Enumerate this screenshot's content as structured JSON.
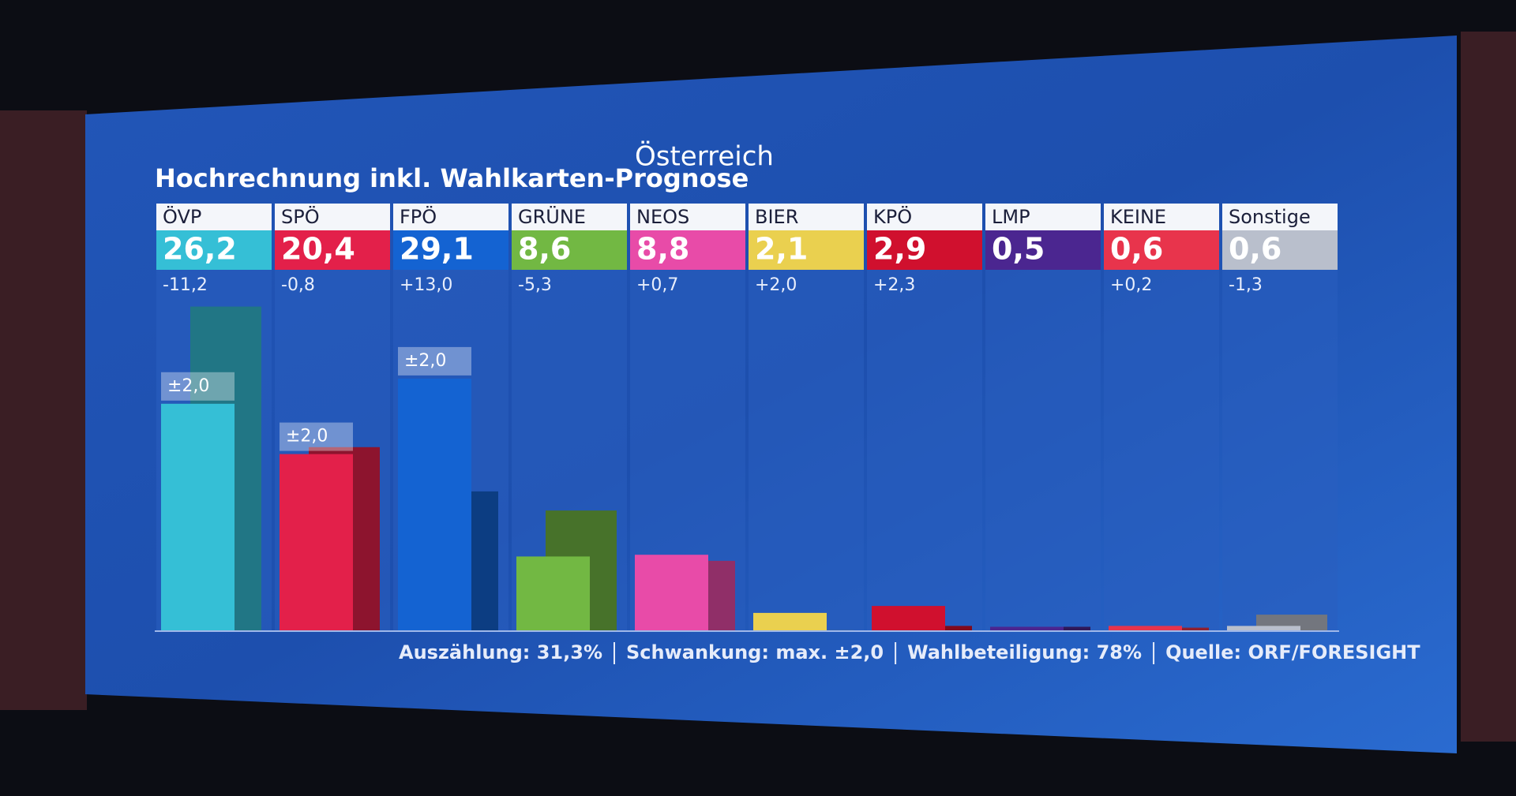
{
  "chart_data": {
    "type": "bar",
    "title": "Hochrechnung inkl. Wahlkarten-Prognose",
    "subtitle": "Österreich",
    "categories": [
      "ÖVP",
      "SPÖ",
      "FPÖ",
      "GRÜNE",
      "NEOS",
      "BIER",
      "KPÖ",
      "LMP",
      "KEINE",
      "Sonstige"
    ],
    "values": [
      26.2,
      20.4,
      29.1,
      8.6,
      8.8,
      2.1,
      2.9,
      0.5,
      0.6,
      0.6
    ],
    "value_labels": [
      "26,2",
      "20,4",
      "29,1",
      "8,6",
      "8,8",
      "2,1",
      "2,9",
      "0,5",
      "0,6",
      "0,6"
    ],
    "changes": [
      -11.2,
      -0.8,
      13.0,
      -5.3,
      0.7,
      2.0,
      2.3,
      null,
      0.2,
      -1.3
    ],
    "change_labels": [
      "-11,2",
      "-0,8",
      "+13,0",
      "-5,3",
      "+0,7",
      "+2,0",
      "+2,3",
      null,
      "+0,2",
      "-1,3"
    ],
    "previous_values": [
      37.4,
      21.2,
      16.1,
      13.9,
      8.1,
      0.1,
      0.6,
      0.5,
      0.4,
      1.9
    ],
    "margin_labels": [
      "±2,0",
      "±2,0",
      "±2,0",
      null,
      null,
      null,
      null,
      null,
      null,
      null
    ],
    "colors": [
      "#35bfd6",
      "#e3204a",
      "#1463d2",
      "#72b843",
      "#e84ba8",
      "#ead04f",
      "#d0102e",
      "#4b2690",
      "#e8344c",
      "#b9bfcc"
    ],
    "ylim": [
      0,
      40
    ],
    "footer": [
      "Auszählung: 31,3%",
      "Schwankung: max. ±2,0",
      "Wahlbeteiligung: 78%",
      "Quelle: ORF/FORESIGHT"
    ]
  }
}
